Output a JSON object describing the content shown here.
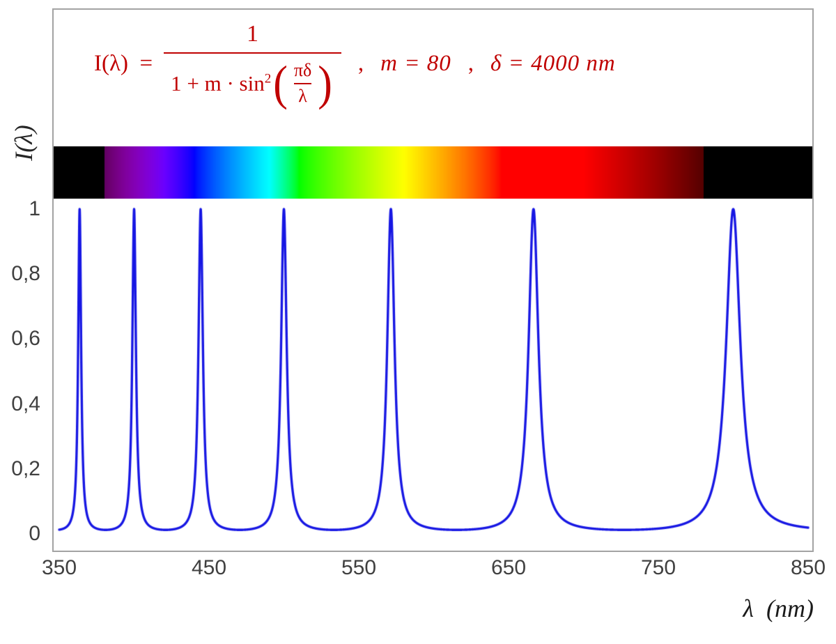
{
  "chart_data": {
    "type": "line",
    "title": "",
    "xlabel": "λ  (nm)",
    "ylabel": "I(λ)",
    "xlim": [
      350,
      850
    ],
    "ylim": [
      0,
      1
    ],
    "x_ticks": [
      350,
      450,
      550,
      650,
      750,
      850
    ],
    "x_tick_labels": [
      "350",
      "450",
      "550",
      "650",
      "750",
      "850"
    ],
    "y_ticks": [
      0,
      0.2,
      0.4,
      0.6,
      0.8,
      1
    ],
    "y_tick_labels": [
      "0",
      "0,2",
      "0,4",
      "0,6",
      "0,8",
      "1"
    ],
    "grid": false,
    "legend": null,
    "axis_text_color": "#404040",
    "params": {
      "m": 80,
      "delta_nm": 4000
    },
    "series": [
      {
        "name": "I(λ)",
        "kind": "function",
        "function": "I(λ) = 1 / (1 + m·sin²(π·δ/λ))",
        "params": {
          "m": 80,
          "delta_nm": 4000
        },
        "peaks_nm": [
          363.64,
          400,
          444.44,
          500,
          571.43,
          666.67,
          800
        ],
        "peak_value": 1,
        "min_value_approx": 0.0123,
        "color": "#1717e3",
        "line_width": 3.4
      }
    ],
    "spectrum_bar": {
      "span_nm": [
        350,
        850
      ],
      "visible_nm": [
        380,
        780
      ],
      "background": "#000000"
    },
    "formula": {
      "lhs": "I(λ)",
      "eq": "=",
      "numerator": "1",
      "den": "1 + m · sin",
      "den_sup": "2",
      "open_paren": "(",
      "inner_num": "πδ",
      "inner_den": "λ",
      "close_paren": ")",
      "sep": ",",
      "param_m": "m = 80",
      "param_delta": "δ = 4000 nm",
      "color": "#c00000"
    }
  }
}
